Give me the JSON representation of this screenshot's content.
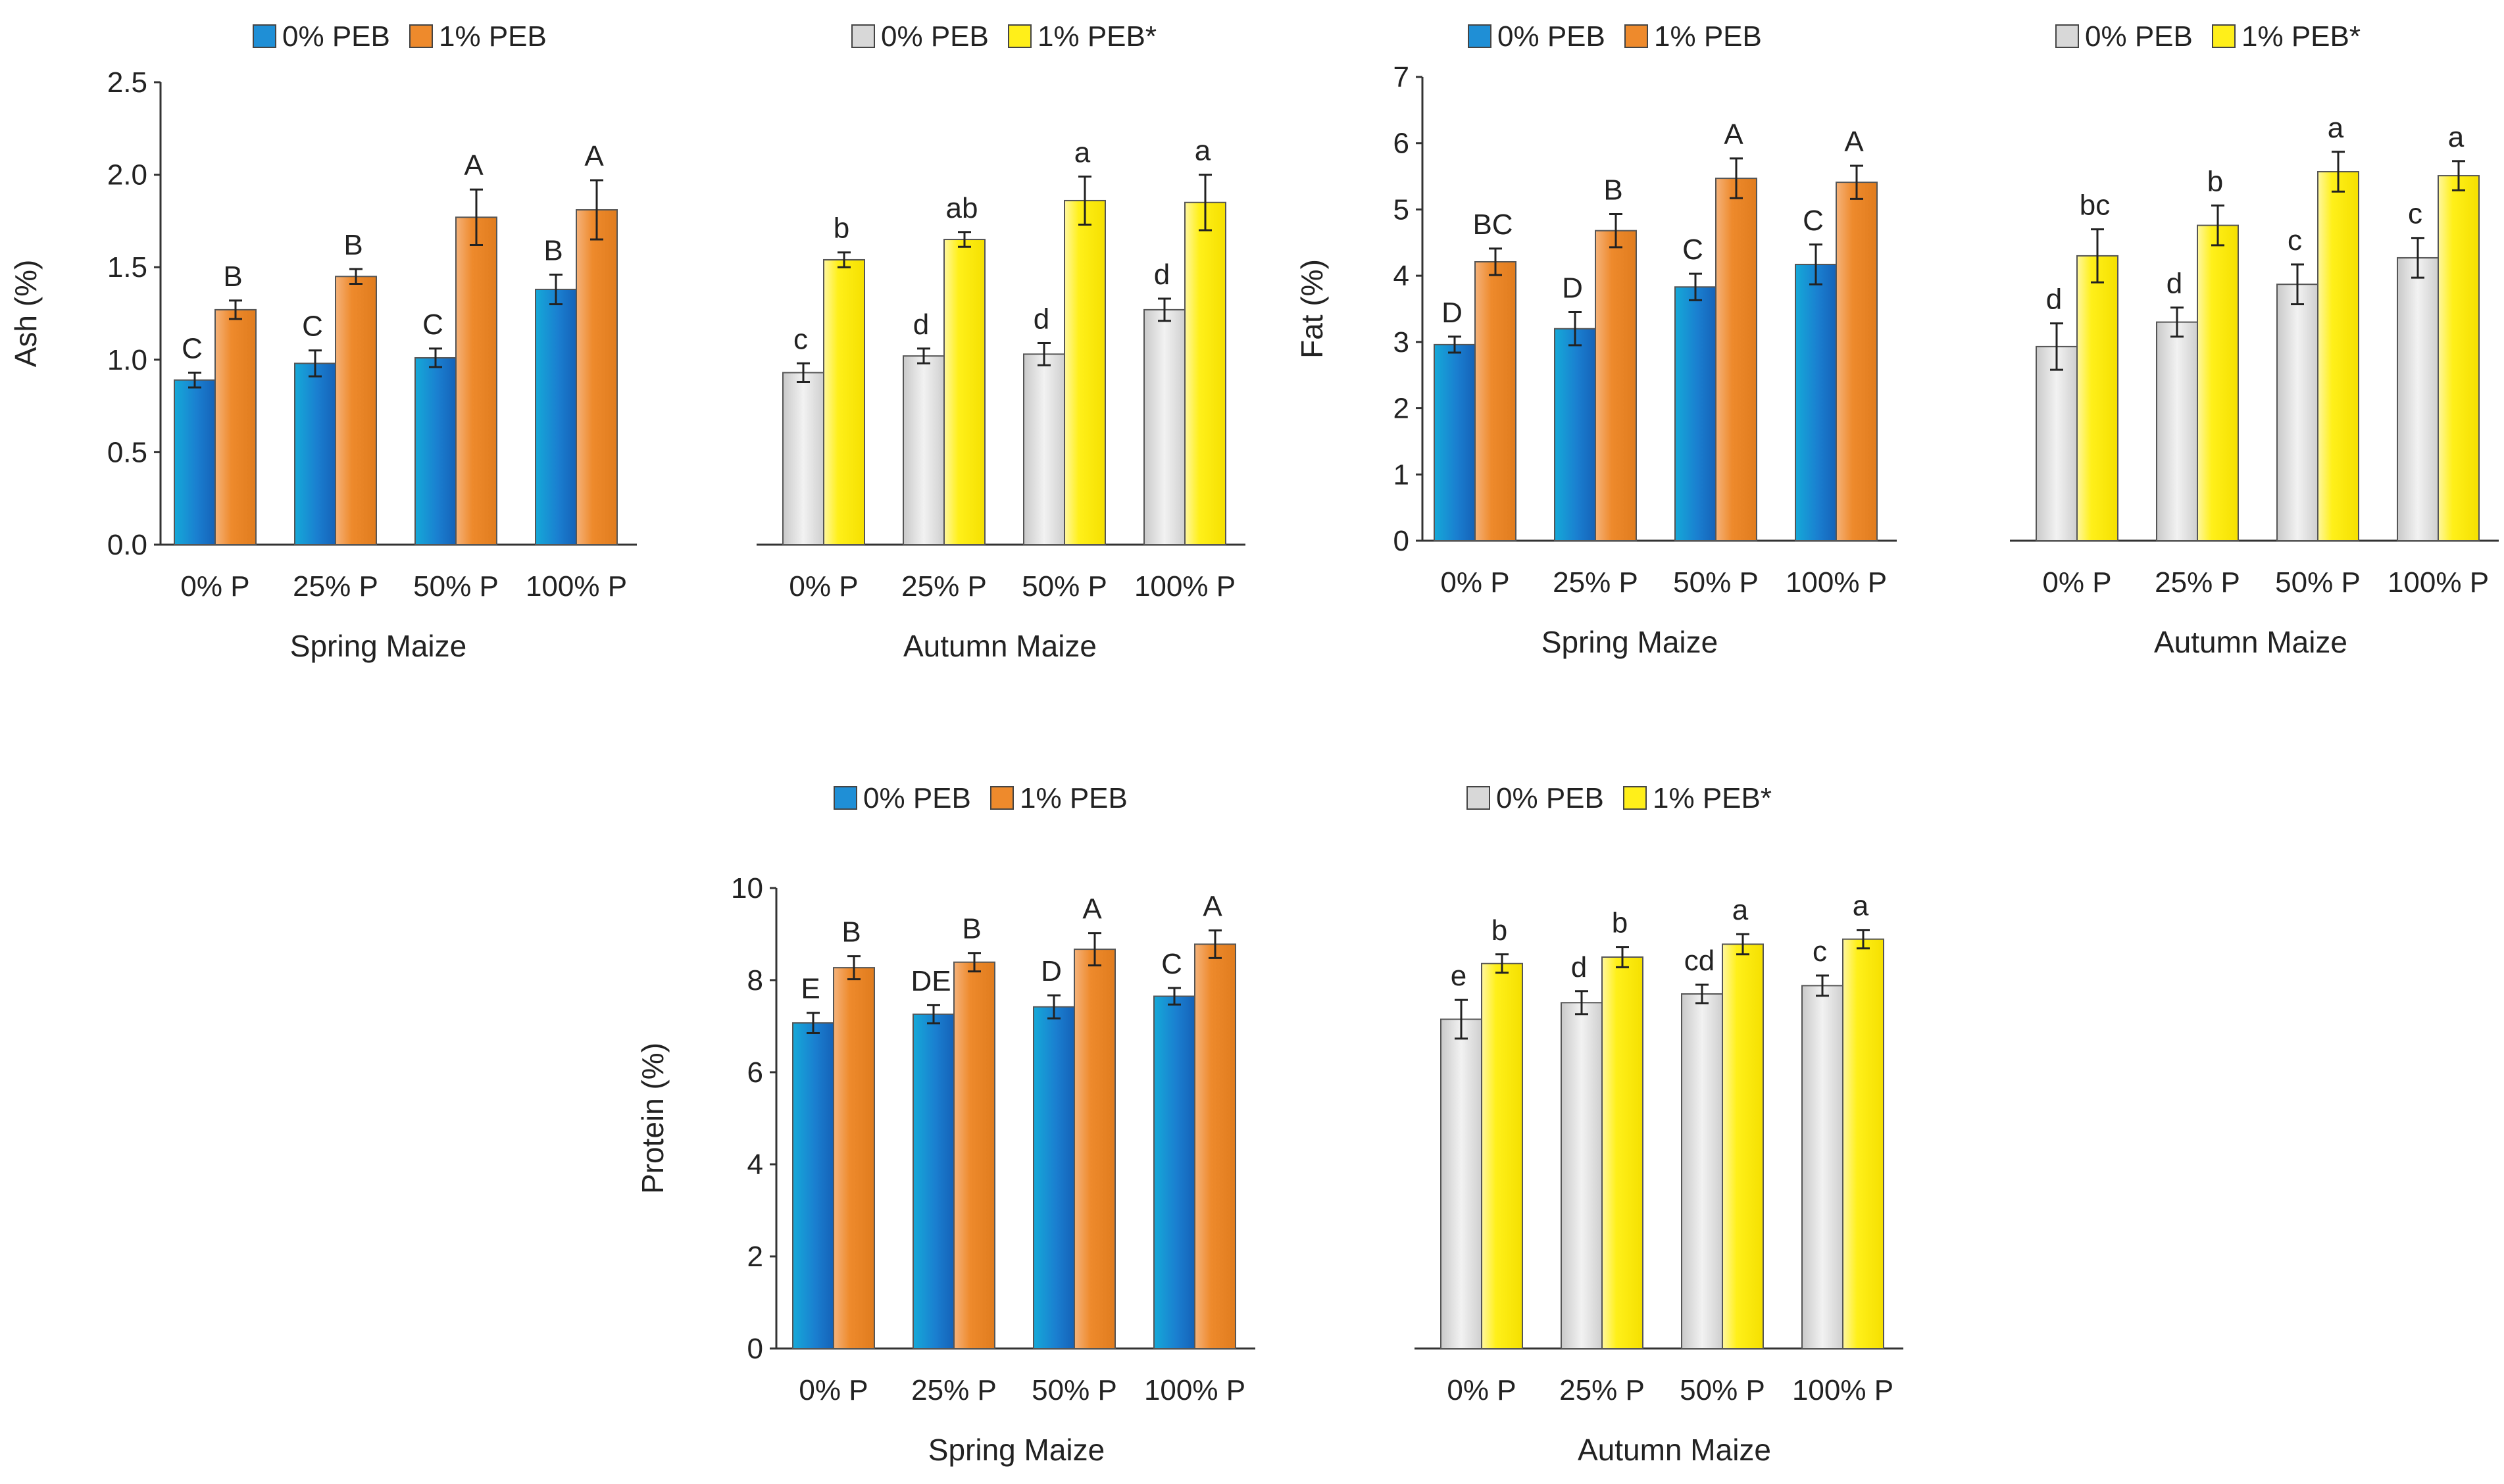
{
  "colors": {
    "spring_0": "#1f8fd6",
    "spring_1": "#ee8a2c",
    "autumn_0": "#d8d8d8",
    "autumn_1": "#ffef1a",
    "axis": "#333333"
  },
  "chart_data": [
    {
      "id": "ash",
      "type": "bar",
      "ylabel": "Ash (%)",
      "ylim": [
        0,
        2.5
      ],
      "yticks": [
        "0.0",
        "0.5",
        "1.0",
        "1.5",
        "2.0",
        "2.5"
      ],
      "ytick_values": [
        0,
        0.5,
        1.0,
        1.5,
        2.0,
        2.5
      ],
      "groups": [
        {
          "name": "Spring Maize",
          "categories": [
            "0% P",
            "25% P",
            "50% P",
            "100% P"
          ],
          "legend": [
            "0% PEB",
            "1% PEB"
          ],
          "series": [
            {
              "name": "0% PEB",
              "values": [
                0.89,
                0.98,
                1.01,
                1.38
              ],
              "errors": [
                0.04,
                0.07,
                0.05,
                0.08
              ],
              "letters": [
                "C",
                "C",
                "C",
                "B"
              ]
            },
            {
              "name": "1% PEB",
              "values": [
                1.27,
                1.45,
                1.77,
                1.81
              ],
              "errors": [
                0.05,
                0.04,
                0.15,
                0.16
              ],
              "letters": [
                "B",
                "B",
                "A",
                "A"
              ]
            }
          ]
        },
        {
          "name": "Autumn Maize",
          "categories": [
            "0% P",
            "25% P",
            "50% P",
            "100% P"
          ],
          "legend": [
            "0% PEB",
            "1% PEB*"
          ],
          "series": [
            {
              "name": "0% PEB",
              "values": [
                0.93,
                1.02,
                1.03,
                1.27
              ],
              "errors": [
                0.05,
                0.04,
                0.06,
                0.06
              ],
              "letters": [
                "c",
                "d",
                "d",
                "d"
              ]
            },
            {
              "name": "1% PEB*",
              "values": [
                1.54,
                1.65,
                1.86,
                1.85
              ],
              "errors": [
                0.04,
                0.04,
                0.13,
                0.15
              ],
              "letters": [
                "b",
                "ab",
                "a",
                "a"
              ]
            }
          ]
        }
      ]
    },
    {
      "id": "fat",
      "type": "bar",
      "ylabel": "Fat (%)",
      "ylim": [
        0,
        7
      ],
      "yticks": [
        "0",
        "1",
        "2",
        "3",
        "4",
        "5",
        "6",
        "7"
      ],
      "ytick_values": [
        0,
        1,
        2,
        3,
        4,
        5,
        6,
        7
      ],
      "groups": [
        {
          "name": "Spring Maize",
          "categories": [
            "0% P",
            "25% P",
            "50% P",
            "100% P"
          ],
          "legend": [
            "0% PEB",
            "1% PEB"
          ],
          "series": [
            {
              "name": "0% PEB",
              "values": [
                2.96,
                3.2,
                3.83,
                4.17
              ],
              "errors": [
                0.12,
                0.25,
                0.2,
                0.3
              ],
              "letters": [
                "D",
                "D",
                "C",
                "C"
              ]
            },
            {
              "name": "1% PEB",
              "values": [
                4.21,
                4.68,
                5.47,
                5.41
              ],
              "errors": [
                0.2,
                0.25,
                0.3,
                0.25
              ],
              "letters": [
                "BC",
                "B",
                "A",
                "A"
              ]
            }
          ]
        },
        {
          "name": "Autumn Maize",
          "categories": [
            "0% P",
            "25% P",
            "50% P",
            "100% P"
          ],
          "legend": [
            "0% PEB",
            "1% PEB*"
          ],
          "series": [
            {
              "name": "0% PEB",
              "values": [
                2.93,
                3.3,
                3.87,
                4.27
              ],
              "errors": [
                0.35,
                0.22,
                0.3,
                0.3
              ],
              "letters": [
                "d",
                "d",
                "c",
                "c"
              ]
            },
            {
              "name": "1% PEB*",
              "values": [
                4.3,
                4.76,
                5.57,
                5.51
              ],
              "errors": [
                0.4,
                0.3,
                0.3,
                0.22
              ],
              "letters": [
                "bc",
                "b",
                "a",
                "a"
              ]
            }
          ]
        }
      ]
    },
    {
      "id": "protein",
      "type": "bar",
      "ylabel": "Protein (%)",
      "ylim": [
        0,
        10
      ],
      "yticks": [
        "0",
        "2",
        "4",
        "6",
        "8",
        "10"
      ],
      "ytick_values": [
        0,
        2,
        4,
        6,
        8,
        10
      ],
      "groups": [
        {
          "name": "Spring Maize",
          "categories": [
            "0% P",
            "25% P",
            "50% P",
            "100% P"
          ],
          "legend": [
            "0% PEB",
            "1% PEB"
          ],
          "series": [
            {
              "name": "0% PEB",
              "values": [
                7.07,
                7.26,
                7.42,
                7.65
              ],
              "errors": [
                0.22,
                0.2,
                0.25,
                0.18
              ],
              "letters": [
                "E",
                "DE",
                "D",
                "C"
              ]
            },
            {
              "name": "1% PEB",
              "values": [
                8.27,
                8.39,
                8.67,
                8.78
              ],
              "errors": [
                0.25,
                0.2,
                0.35,
                0.3
              ],
              "letters": [
                "B",
                "B",
                "A",
                "A"
              ]
            }
          ]
        },
        {
          "name": "Autumn Maize",
          "categories": [
            "0% P",
            "25% P",
            "50% P",
            "100% P"
          ],
          "legend": [
            "0% PEB",
            "1% PEB*"
          ],
          "series": [
            {
              "name": "0% PEB",
              "values": [
                7.15,
                7.51,
                7.7,
                7.88
              ],
              "errors": [
                0.42,
                0.25,
                0.2,
                0.22
              ],
              "letters": [
                "e",
                "d",
                "cd",
                "c"
              ]
            },
            {
              "name": "1% PEB*",
              "values": [
                8.36,
                8.5,
                8.78,
                8.89
              ],
              "errors": [
                0.2,
                0.22,
                0.22,
                0.2
              ],
              "letters": [
                "b",
                "b",
                "a",
                "a"
              ]
            }
          ]
        }
      ]
    }
  ]
}
